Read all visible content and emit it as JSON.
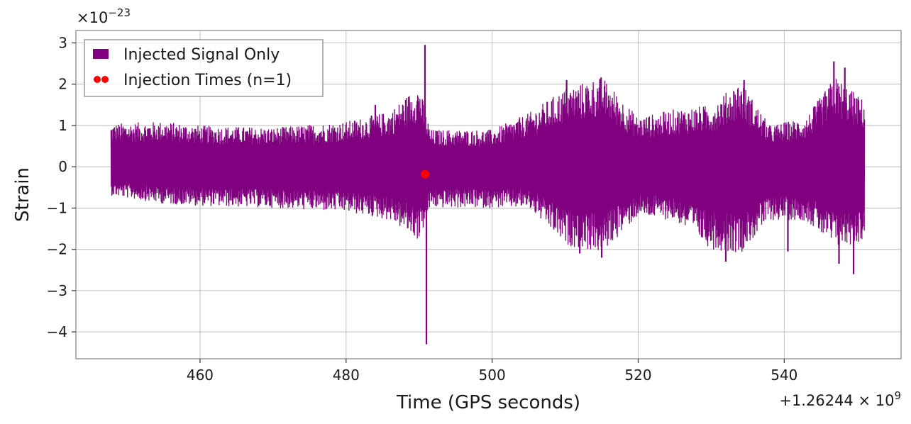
{
  "chart_data": {
    "type": "line",
    "title": "",
    "xlabel": "Time (GPS seconds)",
    "ylabel": "Strain",
    "x_offset_label": {
      "base": "+1.26244 × 10",
      "exponent": "9"
    },
    "y_scale_label": {
      "base": "×10",
      "exponent": "−23"
    },
    "xlim": [
      443,
      556
    ],
    "ylim": [
      -4.65,
      3.3
    ],
    "x_ticks": [
      460,
      480,
      500,
      520,
      540
    ],
    "x_tick_labels": [
      "460",
      "480",
      "500",
      "520",
      "540"
    ],
    "y_ticks": [
      3,
      2,
      1,
      0,
      -1,
      -2,
      -3,
      -4
    ],
    "y_tick_labels": [
      "3",
      "2",
      "1",
      "0",
      "−1",
      "−2",
      "−3",
      "−4"
    ],
    "grid": true,
    "legend_position": "top-left",
    "series": [
      {
        "name": "Injected Signal Only",
        "color": "#800080",
        "x_range": [
          447.8,
          551.0
        ],
        "envelope": [
          {
            "x": 447.8,
            "ymin": -0.7,
            "ymax": 1.05
          },
          {
            "x": 455,
            "ymin": -0.9,
            "ymax": 1.1
          },
          {
            "x": 460,
            "ymin": -0.95,
            "ymax": 1.0
          },
          {
            "x": 470,
            "ymin": -1.0,
            "ymax": 0.95
          },
          {
            "x": 480,
            "ymin": -1.1,
            "ymax": 1.1
          },
          {
            "x": 486,
            "ymin": -1.3,
            "ymax": 1.35
          },
          {
            "x": 490,
            "ymin": -1.8,
            "ymax": 2.0
          },
          {
            "x": 491.5,
            "ymin": -1.0,
            "ymax": 0.9
          },
          {
            "x": 500,
            "ymin": -1.0,
            "ymax": 0.9
          },
          {
            "x": 505,
            "ymin": -1.0,
            "ymax": 1.3
          },
          {
            "x": 510,
            "ymin": -1.9,
            "ymax": 1.9
          },
          {
            "x": 515,
            "ymin": -2.1,
            "ymax": 2.2
          },
          {
            "x": 520,
            "ymin": -1.2,
            "ymax": 1.2
          },
          {
            "x": 525,
            "ymin": -1.3,
            "ymax": 1.4
          },
          {
            "x": 530,
            "ymin": -2.0,
            "ymax": 1.5
          },
          {
            "x": 534,
            "ymin": -2.1,
            "ymax": 2.1
          },
          {
            "x": 538,
            "ymin": -1.3,
            "ymax": 1.0
          },
          {
            "x": 543,
            "ymin": -1.3,
            "ymax": 1.2
          },
          {
            "x": 547,
            "ymin": -2.0,
            "ymax": 2.2
          },
          {
            "x": 551.0,
            "ymin": -1.8,
            "ymax": 1.6
          }
        ],
        "spikes": [
          {
            "x": 484.0,
            "y": 1.5
          },
          {
            "x": 489.7,
            "y": 1.5
          },
          {
            "x": 490.8,
            "y": 2.95
          },
          {
            "x": 491.0,
            "y": -4.3
          },
          {
            "x": 510.2,
            "y": 2.1
          },
          {
            "x": 512.0,
            "y": -2.1
          },
          {
            "x": 515.0,
            "y": -2.2
          },
          {
            "x": 532.0,
            "y": -2.3
          },
          {
            "x": 534.5,
            "y": 2.1
          },
          {
            "x": 540.5,
            "y": -2.05
          },
          {
            "x": 546.8,
            "y": 2.55
          },
          {
            "x": 548.3,
            "y": 2.4
          },
          {
            "x": 549.5,
            "y": -2.6
          },
          {
            "x": 547.5,
            "y": -2.35
          }
        ]
      },
      {
        "name": "Injection Times (n=1)",
        "color": "#ff0000",
        "type": "scatter",
        "points": [
          {
            "x": 490.8,
            "y": -0.18
          }
        ]
      }
    ]
  }
}
